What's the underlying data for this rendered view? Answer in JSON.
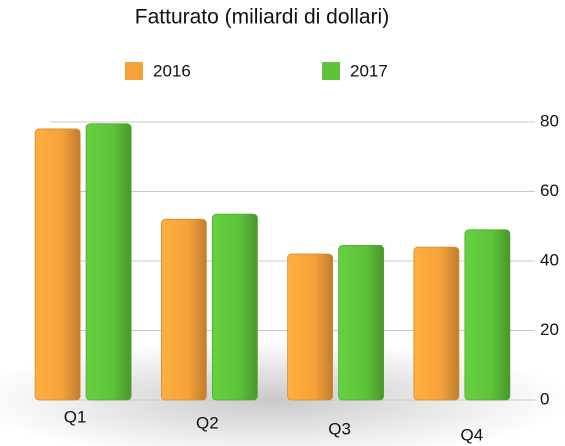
{
  "chart_data": {
    "type": "bar",
    "title": "Fatturato (miliardi di dollari)",
    "categories": [
      "Q1",
      "Q2",
      "Q3",
      "Q4"
    ],
    "series": [
      {
        "name": "2016",
        "color": "#f5a23a",
        "values": [
          78,
          52,
          42,
          44
        ]
      },
      {
        "name": "2017",
        "color": "#5ec23a",
        "values": [
          79.5,
          53.5,
          44.5,
          49
        ]
      }
    ],
    "ylim": [
      0,
      80
    ],
    "yticks": [
      0,
      20,
      40,
      60,
      80
    ],
    "grid": true
  }
}
